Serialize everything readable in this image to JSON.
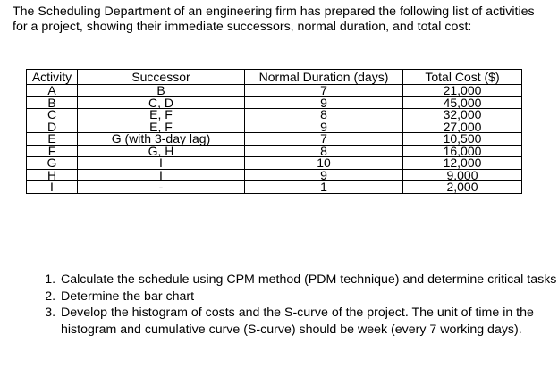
{
  "intro": "The Scheduling Department of an engineering firm has prepared the following list of activities for a project, showing their immediate successors, normal duration, and total cost:",
  "table": {
    "headers": [
      "Activity",
      "Successor",
      "Normal Duration (days)",
      "Total Cost ($)"
    ],
    "rows": [
      [
        "A",
        "B",
        "7",
        "21,000"
      ],
      [
        "B",
        "C, D",
        "9",
        "45,000"
      ],
      [
        "C",
        "E, F",
        "8",
        "32,000"
      ],
      [
        "D",
        "E, F",
        "9",
        "27,000"
      ],
      [
        "E",
        "G (with 3-day lag)",
        "7",
        "10,500"
      ],
      [
        "F",
        "G, H",
        "8",
        "16,000"
      ],
      [
        "G",
        "I",
        "10",
        "12,000"
      ],
      [
        "H",
        "I",
        "9",
        "9,000"
      ],
      [
        "I",
        "-",
        "1",
        "2,000"
      ]
    ]
  },
  "tasks": [
    "Calculate the schedule using CPM method (PDM technique) and determine critical tasks",
    "Determine the bar chart",
    "Develop the histogram of costs and the S-curve of the project. The unit of time in the histogram and cumulative curve (S-curve) should be week (every 7 working days)."
  ]
}
